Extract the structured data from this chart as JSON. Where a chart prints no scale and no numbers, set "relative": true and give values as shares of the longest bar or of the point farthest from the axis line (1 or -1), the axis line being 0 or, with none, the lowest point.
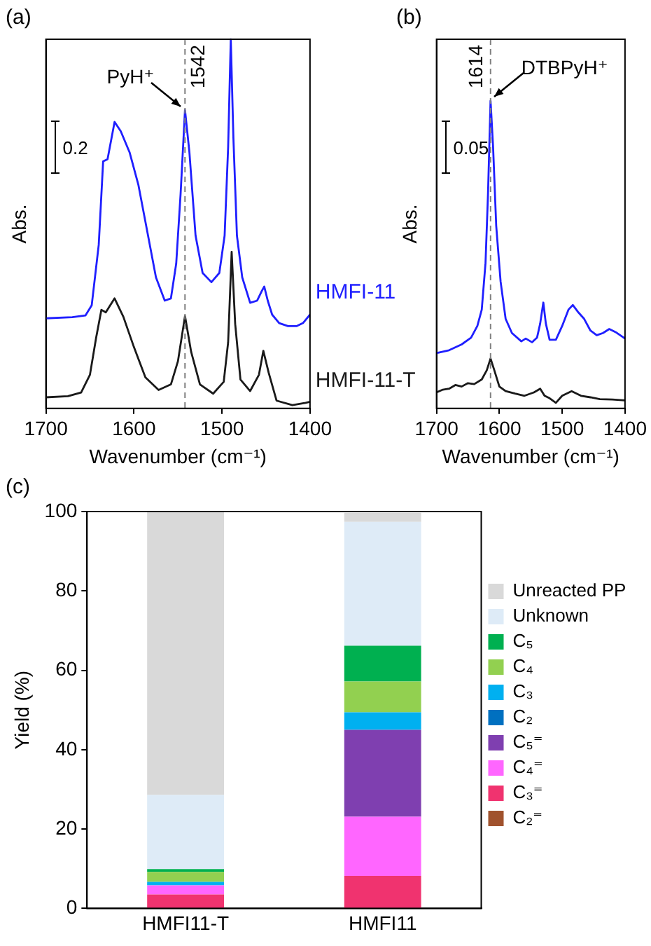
{
  "chart_data": [
    {
      "type": "line",
      "title": "(a)",
      "xlabel": "Wavenumber (cm⁻¹)",
      "ylabel": "Abs.",
      "relative": true,
      "xlim": [
        1700,
        1400
      ],
      "xticks": [
        1700,
        1600,
        1500,
        1400
      ],
      "grid": false,
      "legend": false,
      "marker": "none",
      "line_style": "solid",
      "ref_lines": [
        {
          "axis": "x",
          "value": 1542,
          "label": "1542",
          "color": "#808080",
          "line_style": "dashed"
        }
      ],
      "annotations": [
        {
          "text": "PyH⁺",
          "x": 1542,
          "y": 0.808
        },
        "0.2"
      ],
      "series": [
        {
          "name": "HMFI-11",
          "color": "#1f1fff",
          "x": [
            1700,
            1670,
            1655,
            1648,
            1640,
            1635,
            1630,
            1622,
            1615,
            1605,
            1595,
            1585,
            1575,
            1565,
            1558,
            1552,
            1547,
            1542,
            1537,
            1530,
            1522,
            1512,
            1503,
            1497,
            1493,
            1490,
            1487,
            1483,
            1477,
            1468,
            1460,
            1455,
            1452,
            1448,
            1443,
            1435,
            1425,
            1415,
            1408,
            1400
          ],
          "values": [
            0.244,
            0.247,
            0.252,
            0.279,
            0.443,
            0.669,
            0.675,
            0.776,
            0.751,
            0.694,
            0.606,
            0.481,
            0.355,
            0.292,
            0.298,
            0.392,
            0.581,
            0.808,
            0.694,
            0.468,
            0.367,
            0.342,
            0.367,
            0.468,
            0.707,
            1.0,
            0.732,
            0.468,
            0.355,
            0.286,
            0.292,
            0.317,
            0.33,
            0.292,
            0.254,
            0.231,
            0.223,
            0.223,
            0.231,
            0.254
          ]
        },
        {
          "name": "HMFI-11-T",
          "color": "#1a1a1a",
          "x": [
            1700,
            1675,
            1660,
            1650,
            1643,
            1637,
            1632,
            1622,
            1612,
            1600,
            1587,
            1572,
            1558,
            1550,
            1542,
            1535,
            1525,
            1510,
            1498,
            1493,
            1489,
            1485,
            1479,
            1468,
            1458,
            1453,
            1447,
            1438,
            1420,
            1405,
            1400
          ],
          "values": [
            0.03,
            0.033,
            0.043,
            0.091,
            0.191,
            0.267,
            0.26,
            0.298,
            0.248,
            0.166,
            0.084,
            0.05,
            0.065,
            0.128,
            0.25,
            0.153,
            0.065,
            0.04,
            0.072,
            0.179,
            0.424,
            0.229,
            0.078,
            0.047,
            0.091,
            0.156,
            0.097,
            0.021,
            0.009,
            0.015,
            0.018
          ]
        }
      ]
    },
    {
      "type": "line",
      "title": "(b)",
      "xlabel": "Wavenumber (cm⁻¹)",
      "ylabel": "Abs.",
      "relative": true,
      "xlim": [
        1700,
        1400
      ],
      "xticks": [
        1700,
        1600,
        1500,
        1400
      ],
      "grid": false,
      "legend": false,
      "marker": "none",
      "line_style": "solid",
      "ref_lines": [
        {
          "axis": "x",
          "value": 1614,
          "label": "1614",
          "color": "#808080",
          "line_style": "dashed"
        }
      ],
      "annotations": [
        {
          "text": "DTBPyH⁺",
          "x": 1614,
          "y": 1.0
        },
        "0.05"
      ],
      "series": [
        {
          "color": "#1f1fff",
          "x": [
            1700,
            1680,
            1660,
            1645,
            1635,
            1628,
            1622,
            1618,
            1614,
            1610,
            1605,
            1598,
            1590,
            1580,
            1565,
            1558,
            1548,
            1540,
            1535,
            1530,
            1526,
            1520,
            1510,
            1500,
            1490,
            1483,
            1475,
            1465,
            1455,
            1445,
            1435,
            1425,
            1415,
            1400
          ],
          "values": [
            0.18,
            0.189,
            0.208,
            0.23,
            0.268,
            0.321,
            0.473,
            0.7,
            1.0,
            0.852,
            0.594,
            0.412,
            0.291,
            0.245,
            0.218,
            0.227,
            0.215,
            0.23,
            0.276,
            0.344,
            0.276,
            0.223,
            0.223,
            0.268,
            0.321,
            0.336,
            0.314,
            0.291,
            0.253,
            0.238,
            0.245,
            0.258,
            0.248,
            0.227
          ]
        },
        {
          "color": "#1a1a1a",
          "x": [
            1700,
            1690,
            1680,
            1670,
            1660,
            1650,
            1640,
            1628,
            1620,
            1614,
            1608,
            1600,
            1590,
            1575,
            1560,
            1545,
            1535,
            1528,
            1520,
            1510,
            1500,
            1485,
            1470,
            1455,
            1440,
            1420,
            1400
          ],
          "values": [
            0.052,
            0.061,
            0.064,
            0.076,
            0.071,
            0.082,
            0.079,
            0.094,
            0.124,
            0.162,
            0.124,
            0.071,
            0.056,
            0.048,
            0.041,
            0.052,
            0.064,
            0.041,
            0.033,
            0.018,
            0.041,
            0.056,
            0.041,
            0.036,
            0.03,
            0.029,
            0.026
          ]
        }
      ]
    },
    {
      "type": "bar",
      "title": "(c)",
      "ylabel": "Yield (%)",
      "categories": [
        "HMFI11-T",
        "HMFI11"
      ],
      "stacked": true,
      "ylim": [
        0,
        100
      ],
      "yticks": [
        0,
        20,
        40,
        60,
        80,
        100
      ],
      "grid": false,
      "legend": "right",
      "series": [
        {
          "name": "C₂⁼",
          "color": "#a0522d",
          "values": [
            0,
            0
          ]
        },
        {
          "name": "C₃⁼",
          "color": "#f0336f",
          "values": [
            3.5,
            8.2
          ]
        },
        {
          "name": "C₄⁼",
          "color": "#ff66ff",
          "values": [
            2.3,
            14.9
          ]
        },
        {
          "name": "C₅⁼",
          "color": "#7f3fb0",
          "values": [
            0,
            21.9
          ]
        },
        {
          "name": "C₂",
          "color": "#0070c0",
          "values": [
            0,
            0
          ]
        },
        {
          "name": "C₃",
          "color": "#00b0f0",
          "values": [
            0.9,
            4.4
          ]
        },
        {
          "name": "C₄",
          "color": "#92d050",
          "values": [
            2.5,
            7.8
          ]
        },
        {
          "name": "C₅",
          "color": "#00b050",
          "values": [
            0.7,
            9.0
          ]
        },
        {
          "name": "Unknown",
          "color": "#deebf7",
          "values": [
            18.7,
            31.2
          ]
        },
        {
          "name": "Unreacted PP",
          "color": "#d9d9d9",
          "values": [
            71.4,
            2.3
          ]
        }
      ]
    }
  ]
}
